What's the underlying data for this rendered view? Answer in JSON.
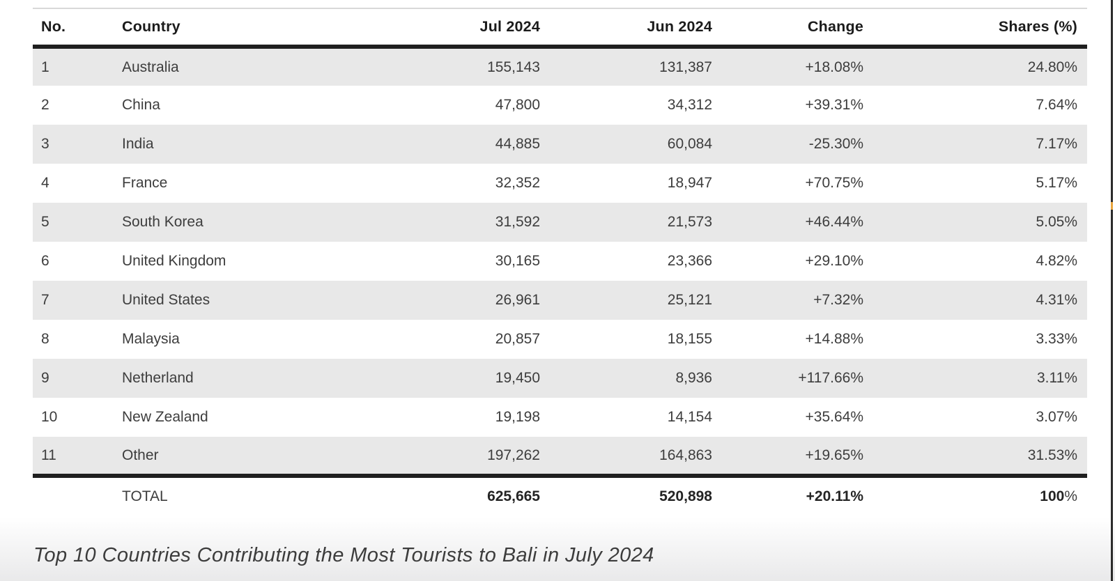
{
  "caption": "Top 10 Countries Contributing the Most Tourists to Bali in July 2024",
  "colors": {
    "row_alt": "#e8e8e8",
    "border_dark": "#1f1f1f",
    "border_light": "#d8d8d8",
    "text": "#3d3d3d",
    "heading_text": "#1b1b1b",
    "marker_orange": "#e9a63f"
  },
  "table": {
    "columns": [
      {
        "key": "no",
        "label": "No.",
        "align": "left"
      },
      {
        "key": "country",
        "label": "Country",
        "align": "left"
      },
      {
        "key": "jul",
        "label": "Jul 2024",
        "align": "right"
      },
      {
        "key": "jun",
        "label": "Jun 2024",
        "align": "right"
      },
      {
        "key": "change",
        "label": "Change",
        "align": "right"
      },
      {
        "key": "shares",
        "label": "Shares (%)",
        "align": "right"
      }
    ],
    "rows": [
      {
        "no": "1",
        "country": "Australia",
        "jul": "155,143",
        "jun": "131,387",
        "change": "+18.08%",
        "shares": "24.80%"
      },
      {
        "no": "2",
        "country": "China",
        "jul": "47,800",
        "jun": "34,312",
        "change": "+39.31%",
        "shares": "7.64%"
      },
      {
        "no": "3",
        "country": "India",
        "jul": "44,885",
        "jun": "60,084",
        "change": "-25.30%",
        "shares": "7.17%"
      },
      {
        "no": "4",
        "country": "France",
        "jul": "32,352",
        "jun": "18,947",
        "change": "+70.75%",
        "shares": "5.17%"
      },
      {
        "no": "5",
        "country": "South Korea",
        "jul": "31,592",
        "jun": "21,573",
        "change": "+46.44%",
        "shares": "5.05%"
      },
      {
        "no": "6",
        "country": "United Kingdom",
        "jul": "30,165",
        "jun": "23,366",
        "change": "+29.10%",
        "shares": "4.82%"
      },
      {
        "no": "7",
        "country": "United States",
        "jul": "26,961",
        "jun": "25,121",
        "change": "+7.32%",
        "shares": "4.31%"
      },
      {
        "no": "8",
        "country": "Malaysia",
        "jul": "20,857",
        "jun": "18,155",
        "change": "+14.88%",
        "shares": "3.33%"
      },
      {
        "no": "9",
        "country": "Netherland",
        "jul": "19,450",
        "jun": "8,936",
        "change": "+117.66%",
        "shares": "3.11%"
      },
      {
        "no": "10",
        "country": "New Zealand",
        "jul": "19,198",
        "jun": "14,154",
        "change": "+35.64%",
        "shares": "3.07%"
      },
      {
        "no": "11",
        "country": "Other",
        "jul": "197,262",
        "jun": "164,863",
        "change": "+19.65%",
        "shares": "31.53%"
      }
    ],
    "total": {
      "label": "TOTAL",
      "jul": "625,665",
      "jun": "520,898",
      "change": "+20.11%",
      "shares_bold": "100",
      "shares_light": "%"
    }
  }
}
